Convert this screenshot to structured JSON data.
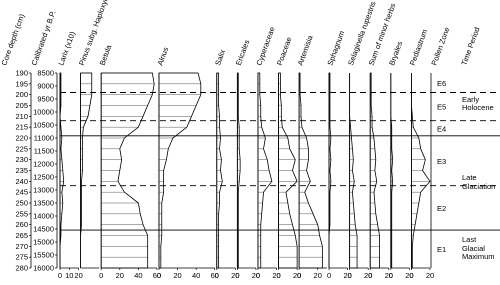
{
  "chart_data": {
    "type": "pollen",
    "depth_label": "Core depth (cm)",
    "age_label": "Calibrated yr B.P.",
    "zone_label": "Pollen Zone",
    "period_label": "Time Period",
    "ylim": [
      190,
      280
    ],
    "yticks": [
      190,
      195,
      200,
      205,
      210,
      215,
      220,
      225,
      230,
      235,
      240,
      245,
      250,
      255,
      260,
      265,
      270,
      275,
      280
    ],
    "y2lim": [
      8500,
      16000
    ],
    "y2ticks": [
      8500,
      9000,
      9500,
      10000,
      10500,
      11000,
      11500,
      12000,
      12500,
      13000,
      13500,
      14000,
      14500,
      15000,
      15500,
      16000
    ],
    "depth": [
      190,
      195,
      200,
      205,
      210,
      215,
      220,
      225,
      230,
      235,
      240,
      245,
      250,
      255,
      260,
      265,
      270,
      275,
      280
    ],
    "series": [
      {
        "name": "Larix (x10)",
        "xlim": [
          0,
          20
        ],
        "xticks": [
          0,
          10,
          20
        ],
        "values": [
          1,
          1,
          1,
          1,
          0,
          1,
          2,
          1,
          2,
          3,
          4,
          2,
          3,
          2,
          1,
          1,
          0,
          0,
          0
        ]
      },
      {
        "name": "Pinus subg. Haploxylon",
        "xlim": [
          0,
          20
        ],
        "xticks": [],
        "values": [
          12,
          12,
          12,
          10,
          8,
          3,
          2,
          2,
          2,
          2,
          1,
          1,
          1,
          1,
          1,
          0,
          0,
          0,
          0
        ]
      },
      {
        "name": "Betula",
        "xlim": [
          0,
          60
        ],
        "xticks": [
          0,
          20,
          40,
          60
        ],
        "values": [
          55,
          57,
          55,
          50,
          45,
          40,
          25,
          20,
          22,
          20,
          18,
          25,
          40,
          42,
          45,
          50,
          50,
          50,
          50
        ]
      },
      {
        "name": "Alnus",
        "xlim": [
          0,
          60
        ],
        "xticks": [
          0,
          20,
          40,
          60
        ],
        "values": [
          42,
          45,
          45,
          40,
          35,
          30,
          15,
          10,
          8,
          5,
          5,
          5,
          3,
          3,
          3,
          3,
          2,
          2,
          2
        ]
      },
      {
        "name": "Salix",
        "xlim": [
          0,
          20
        ],
        "xticks": [
          0,
          20
        ],
        "values": [
          2,
          2,
          2,
          2,
          3,
          3,
          4,
          3,
          5,
          4,
          6,
          3,
          3,
          2,
          2,
          2,
          2,
          2,
          2
        ]
      },
      {
        "name": "Ericales",
        "xlim": [
          0,
          20
        ],
        "xticks": [
          0,
          20
        ],
        "values": [
          1,
          1,
          1,
          1,
          1,
          2,
          2,
          2,
          3,
          3,
          2,
          1,
          1,
          1,
          1,
          1,
          1,
          1,
          1
        ]
      },
      {
        "name": "Cyperaceae",
        "xlim": [
          0,
          20
        ],
        "xticks": [
          0,
          20
        ],
        "values": [
          2,
          2,
          2,
          3,
          3,
          4,
          8,
          6,
          10,
          12,
          15,
          6,
          5,
          4,
          3,
          3,
          3,
          3,
          3
        ]
      },
      {
        "name": "Poaceae",
        "xlim": [
          0,
          20
        ],
        "xticks": [
          0,
          20
        ],
        "values": [
          2,
          2,
          2,
          3,
          3,
          4,
          10,
          12,
          18,
          15,
          20,
          8,
          10,
          12,
          15,
          18,
          20,
          20,
          20
        ]
      },
      {
        "name": "Artemisia",
        "xlim": [
          0,
          30
        ],
        "xticks": [
          0,
          20
        ],
        "values": [
          1,
          1,
          1,
          2,
          2,
          3,
          8,
          10,
          10,
          8,
          12,
          6,
          10,
          15,
          20,
          22,
          25,
          25,
          25
        ]
      },
      {
        "name": "Sphagnum",
        "xlim": [
          0,
          20
        ],
        "xticks": [
          0,
          20
        ],
        "values": [
          1,
          1,
          1,
          1,
          1,
          1,
          2,
          1,
          2,
          1,
          2,
          1,
          1,
          1,
          1,
          0,
          0,
          0,
          0
        ]
      },
      {
        "name": "Selaginella rupestris",
        "xlim": [
          0,
          20
        ],
        "xticks": [
          0,
          20
        ],
        "values": [
          0,
          0,
          0,
          0,
          0,
          1,
          2,
          3,
          4,
          3,
          5,
          3,
          4,
          5,
          6,
          8,
          8,
          8,
          8
        ]
      },
      {
        "name": "Sum of minor herbs",
        "xlim": [
          0,
          20
        ],
        "xticks": [
          0,
          20
        ],
        "values": [
          1,
          1,
          1,
          1,
          2,
          2,
          4,
          5,
          6,
          5,
          7,
          4,
          5,
          6,
          8,
          10,
          10,
          10,
          10
        ]
      },
      {
        "name": "Bryales",
        "xlim": [
          0,
          20
        ],
        "xticks": [
          0,
          20
        ],
        "values": [
          0,
          0,
          0,
          0,
          0,
          1,
          1,
          1,
          2,
          1,
          2,
          1,
          1,
          1,
          1,
          1,
          1,
          1,
          1
        ]
      },
      {
        "name": "Pediastrum",
        "xlim": [
          0,
          20
        ],
        "xticks": [
          0,
          20
        ],
        "values": [
          0,
          0,
          0,
          0,
          1,
          2,
          8,
          10,
          15,
          12,
          20,
          10,
          8,
          6,
          4,
          2,
          1,
          1,
          1
        ]
      }
    ],
    "zone_boundaries": [
      {
        "depth": 199,
        "style": "dashed"
      },
      {
        "depth": 212,
        "style": "dashed"
      },
      {
        "depth": 219,
        "style": "solid"
      },
      {
        "depth": 242,
        "style": "dashed"
      },
      {
        "depth": 262.5,
        "style": "solid"
      }
    ],
    "zones": [
      "E6",
      "E5",
      "E4",
      "E3",
      "E2",
      "E1"
    ],
    "periods": [
      "Early Holocene",
      "Late Glaciation",
      "Last Glacial Maximum"
    ]
  }
}
